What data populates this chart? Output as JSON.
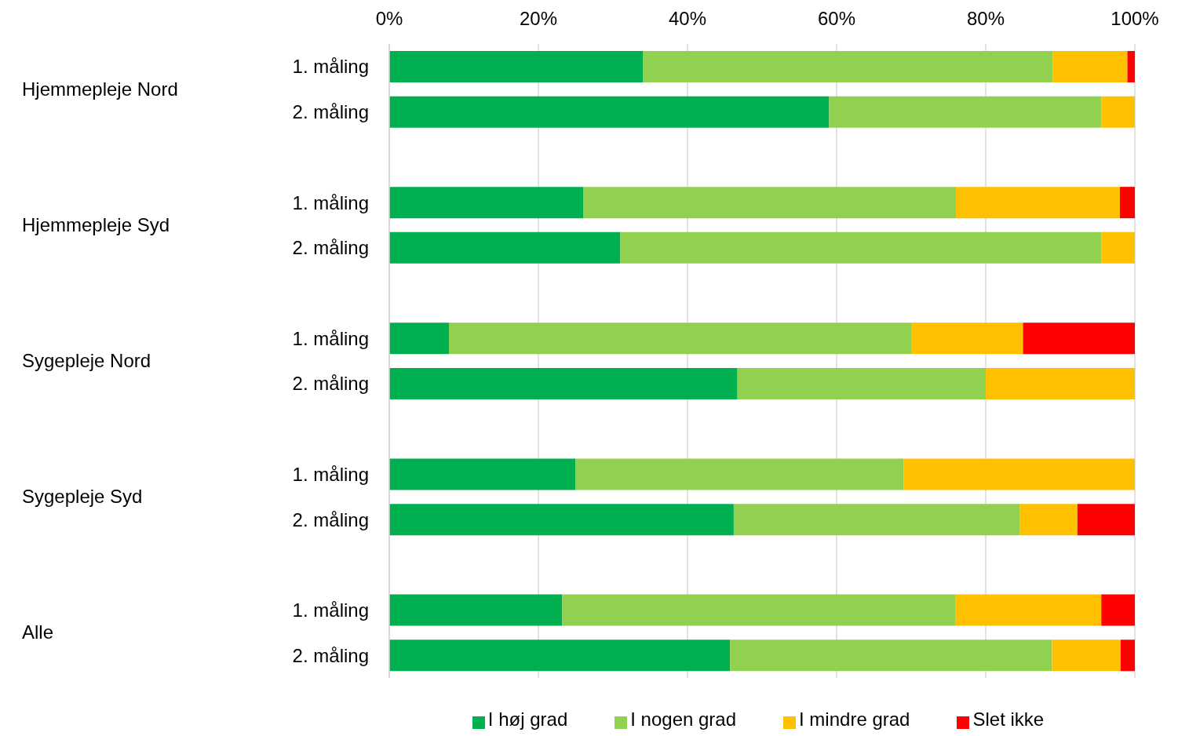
{
  "chart_data": {
    "type": "bar",
    "orientation": "horizontal",
    "stacked": true,
    "categories": [
      "1. måling",
      "2. måling",
      null,
      "1. måling",
      "2. måling",
      null,
      "1. måling",
      "2. måling",
      null,
      "1. måling",
      "2. måling",
      null,
      "1. måling",
      "2. måling"
    ],
    "series": [
      {
        "name": "I høj grad",
        "color": "#00b050",
        "values": [
          34,
          59,
          null,
          26,
          31,
          null,
          8,
          46.7,
          null,
          25,
          46.2,
          null,
          23.2,
          45.7
        ]
      },
      {
        "name": "I nogen grad",
        "color": "#92d050",
        "values": [
          55,
          36.5,
          null,
          50,
          64.5,
          null,
          62,
          33.3,
          null,
          44,
          38.4,
          null,
          52.7,
          43.2
        ]
      },
      {
        "name": "I mindre grad",
        "color": "#ffc000",
        "values": [
          10,
          4.5,
          null,
          22,
          4.5,
          null,
          15,
          20,
          null,
          31,
          7.7,
          null,
          19.6,
          9.2
        ]
      },
      {
        "name": "Slet ikke",
        "color": "#ff0000",
        "values": [
          1,
          0,
          null,
          2,
          0,
          null,
          15,
          0,
          null,
          0,
          7.7,
          null,
          4.5,
          1.9
        ]
      }
    ],
    "xlim": [
      0,
      100
    ],
    "xticks": [
      {
        "value": 0,
        "label": "0%"
      },
      {
        "value": 20,
        "label": "20%"
      },
      {
        "value": 40,
        "label": "40%"
      },
      {
        "value": 60,
        "label": "60%"
      },
      {
        "value": 80,
        "label": "80%"
      },
      {
        "value": 100,
        "label": "100%"
      }
    ],
    "grid": "x",
    "legend": "bottom",
    "annotations": [
      "Hjemmepleje Nord",
      "Hjemmepleje Syd",
      "Sygepleje Nord",
      "Sygepleje Syd",
      "Alle"
    ]
  }
}
